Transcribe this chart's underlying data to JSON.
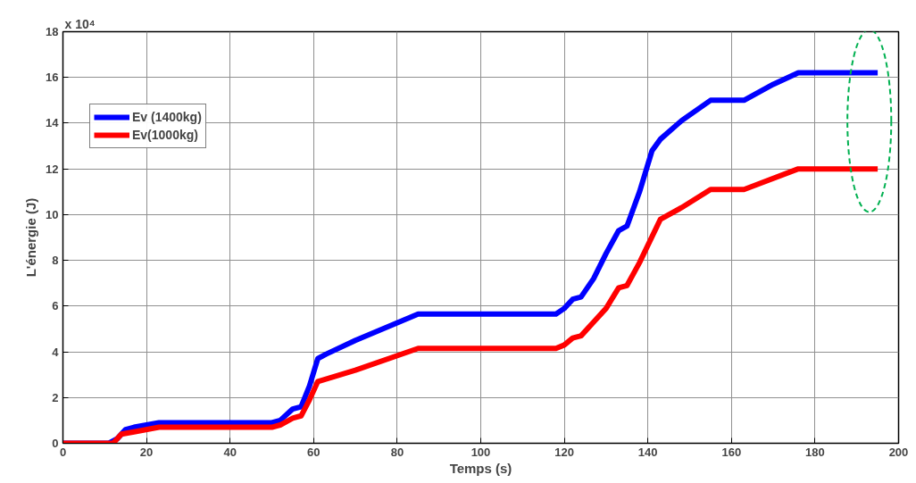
{
  "chart_data": {
    "type": "line",
    "xlabel": "Temps (s)",
    "ylabel": "L'énergie (J)",
    "annotations": [
      "x 10⁴"
    ],
    "xlim": [
      0,
      200
    ],
    "xticks": [
      0,
      20,
      40,
      60,
      80,
      100,
      120,
      140,
      160,
      180,
      200
    ],
    "ylim": [
      0,
      18
    ],
    "yticks": [
      0,
      2,
      4,
      6,
      8,
      10,
      12,
      14,
      16,
      18
    ],
    "grid": true,
    "legend": "top left",
    "line_style": "solid",
    "marker": "none",
    "series": [
      {
        "name": "Ev (1400kg)",
        "color": "#0000ff",
        "x": [
          0,
          11,
          13,
          15,
          17,
          23,
          50,
          52,
          55,
          57,
          59,
          61,
          63,
          70,
          85,
          118,
          120,
          122,
          124,
          127,
          130,
          133,
          135,
          138,
          141,
          143,
          148,
          155,
          163,
          170,
          176,
          195
        ],
        "values": [
          0,
          0,
          0.2,
          0.6,
          0.7,
          0.9,
          0.9,
          1.0,
          1.5,
          1.6,
          2.5,
          3.7,
          3.9,
          4.5,
          5.65,
          5.65,
          5.9,
          6.3,
          6.4,
          7.2,
          8.3,
          9.3,
          9.5,
          11.0,
          12.8,
          13.3,
          14.1,
          15.0,
          15.0,
          15.7,
          16.2,
          16.2
        ]
      },
      {
        "name": "Ev(1000kg)",
        "color": "#ff0000",
        "x": [
          0,
          12,
          14,
          17,
          23,
          50,
          52,
          55,
          57,
          59,
          61,
          70,
          85,
          118,
          120,
          122,
          124,
          127,
          130,
          133,
          135,
          138,
          143,
          148,
          155,
          163,
          176,
          195
        ],
        "values": [
          0,
          0,
          0.4,
          0.5,
          0.7,
          0.7,
          0.8,
          1.1,
          1.2,
          1.9,
          2.7,
          3.2,
          4.15,
          4.15,
          4.3,
          4.6,
          4.7,
          5.3,
          5.9,
          6.8,
          6.9,
          7.9,
          9.8,
          10.3,
          11.1,
          11.1,
          12.0,
          12.0
        ]
      }
    ]
  }
}
